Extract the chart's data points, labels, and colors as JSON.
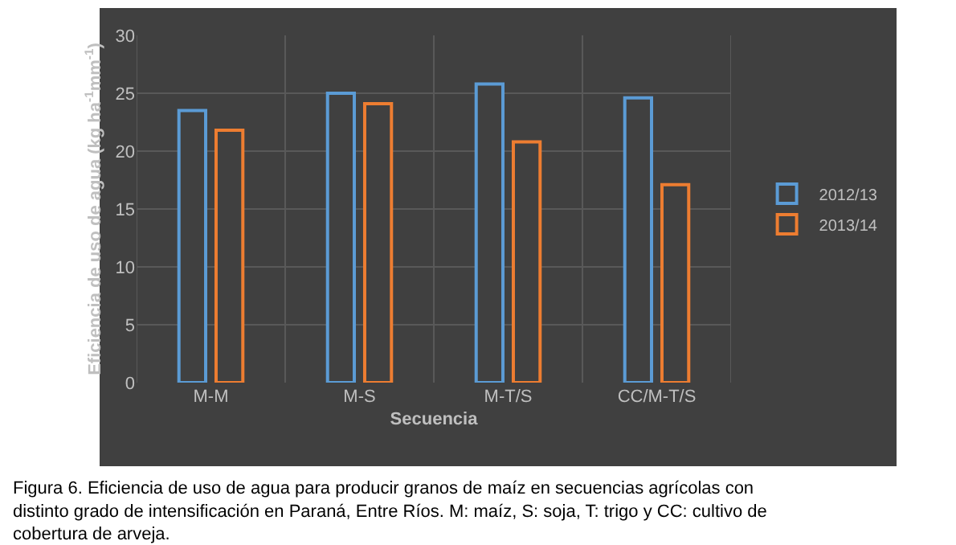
{
  "chart_data": {
    "type": "bar",
    "xlabel": "Secuencia",
    "ylabel": "Eficiencia de uso de agua (kg ha$^{-1}$mm$^{-1}$)",
    "categories": [
      "M-M",
      "M-S",
      "M-T/S",
      "CC/M-T/S"
    ],
    "series": [
      {
        "name": "2012/13",
        "color": "#5b9bd5",
        "values": [
          23.5,
          25.0,
          25.8,
          24.6
        ]
      },
      {
        "name": "2013/14",
        "color": "#ed7d31",
        "values": [
          21.8,
          24.1,
          20.8,
          17.1
        ]
      }
    ],
    "ylim": [
      0,
      30
    ],
    "yticks": [
      0,
      5,
      10,
      15,
      20,
      25,
      30
    ],
    "grid": true,
    "legend": "right",
    "annotations": [
      "Figura 6. Eficiencia de uso de agua para producir granos de maíz en secuencias agrícolas con distinto grado de intensificación en Paraná, Entre Ríos. M: maíz, S: soja, T: trigo y CC: cultivo de cobertura de arveja."
    ]
  }
}
